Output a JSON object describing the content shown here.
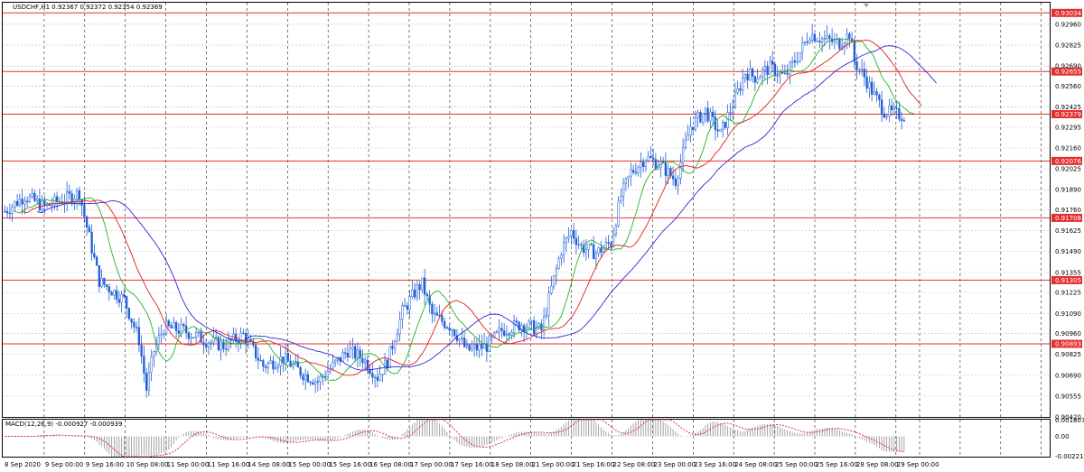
{
  "window": {
    "symbol_header": "USDCHF,H1  0.92367 0.92372 0.92354 0.92369",
    "macd_header": "MACD(12,26,9) -0.000927 -0.000939"
  },
  "colors": {
    "bull": "#1f5fd6",
    "bear": "#1f5fd6",
    "ma_fast": "#22b522",
    "ma_mid": "#e02020",
    "ma_slow": "#2a2ad8",
    "level_line": "#e53030",
    "level_tag_bg": "#e53030",
    "grid": "#b8b8b8",
    "vgrid": "#222222",
    "macd_hist": "#9a9a9a",
    "macd_signal": "#e02020"
  },
  "chart_data": [
    {
      "type": "candlestick",
      "title": "USDCHF,H1",
      "ohlc_last": {
        "open": 0.92367,
        "high": 0.92372,
        "low": 0.92354,
        "close": 0.92369
      },
      "ylim": [
        0.9042,
        0.931
      ],
      "y_ticks": [
        "0.92960",
        "0.92825",
        "0.92690",
        "0.92560",
        "0.92425",
        "0.92295",
        "0.92160",
        "0.92025",
        "0.91890",
        "0.91760",
        "0.91625",
        "0.91490",
        "0.91355",
        "0.91225",
        "0.91090",
        "0.90960",
        "0.90825",
        "0.90690",
        "0.90555",
        "0.90420"
      ],
      "x_ticks": [
        "8 Sep 2020",
        "9 Sep 00:00",
        "9 Sep 16:00",
        "10 Sep 08:00",
        "11 Sep 00:00",
        "11 Sep 16:00",
        "14 Sep 08:00",
        "15 Sep 00:00",
        "15 Sep 16:00",
        "16 Sep 08:00",
        "17 Sep 00:00",
        "17 Sep 16:00",
        "18 Sep 08:00",
        "21 Sep 00:00",
        "21 Sep 16:00",
        "22 Sep 08:00",
        "23 Sep 00:00",
        "23 Sep 16:00",
        "24 Sep 08:00",
        "25 Sep 00:00",
        "25 Sep 16:00",
        "28 Sep 08:00",
        "29 Sep 00:00"
      ],
      "levels": [
        "0.93034",
        "0.92655",
        "0.92379",
        "0.92076",
        "0.91708",
        "0.91305",
        "0.90893"
      ],
      "price_path": [
        {
          "t": 0,
          "p": 0.9175
        },
        {
          "t": 8,
          "p": 0.9185
        },
        {
          "t": 16,
          "p": 0.9178
        },
        {
          "t": 24,
          "p": 0.9183
        },
        {
          "t": 30,
          "p": 0.9187
        },
        {
          "t": 32,
          "p": 0.9172
        },
        {
          "t": 38,
          "p": 0.913
        },
        {
          "t": 48,
          "p": 0.9118
        },
        {
          "t": 54,
          "p": 0.9092
        },
        {
          "t": 57,
          "p": 0.906
        },
        {
          "t": 60,
          "p": 0.9085
        },
        {
          "t": 64,
          "p": 0.91
        },
        {
          "t": 72,
          "p": 0.9098
        },
        {
          "t": 80,
          "p": 0.9092
        },
        {
          "t": 88,
          "p": 0.9088
        },
        {
          "t": 96,
          "p": 0.9095
        },
        {
          "t": 104,
          "p": 0.9075
        },
        {
          "t": 112,
          "p": 0.908
        },
        {
          "t": 120,
          "p": 0.907
        },
        {
          "t": 126,
          "p": 0.9065
        },
        {
          "t": 132,
          "p": 0.9075
        },
        {
          "t": 138,
          "p": 0.9085
        },
        {
          "t": 144,
          "p": 0.908
        },
        {
          "t": 150,
          "p": 0.9068
        },
        {
          "t": 154,
          "p": 0.9078
        },
        {
          "t": 160,
          "p": 0.911
        },
        {
          "t": 166,
          "p": 0.9125
        },
        {
          "t": 168,
          "p": 0.9128
        },
        {
          "t": 172,
          "p": 0.9108
        },
        {
          "t": 180,
          "p": 0.91
        },
        {
          "t": 186,
          "p": 0.9085
        },
        {
          "t": 194,
          "p": 0.9088
        },
        {
          "t": 200,
          "p": 0.9098
        },
        {
          "t": 208,
          "p": 0.9102
        },
        {
          "t": 216,
          "p": 0.9098
        },
        {
          "t": 220,
          "p": 0.9125
        },
        {
          "t": 224,
          "p": 0.915
        },
        {
          "t": 228,
          "p": 0.9162
        },
        {
          "t": 232,
          "p": 0.9152
        },
        {
          "t": 238,
          "p": 0.9148
        },
        {
          "t": 244,
          "p": 0.9155
        },
        {
          "t": 248,
          "p": 0.9185
        },
        {
          "t": 252,
          "p": 0.92
        },
        {
          "t": 258,
          "p": 0.921
        },
        {
          "t": 264,
          "p": 0.9205
        },
        {
          "t": 270,
          "p": 0.9195
        },
        {
          "t": 276,
          "p": 0.923
        },
        {
          "t": 282,
          "p": 0.924
        },
        {
          "t": 288,
          "p": 0.9225
        },
        {
          "t": 294,
          "p": 0.9248
        },
        {
          "t": 298,
          "p": 0.9265
        },
        {
          "t": 302,
          "p": 0.9262
        },
        {
          "t": 308,
          "p": 0.9268
        },
        {
          "t": 314,
          "p": 0.9262
        },
        {
          "t": 320,
          "p": 0.9278
        },
        {
          "t": 324,
          "p": 0.929
        },
        {
          "t": 330,
          "p": 0.9286
        },
        {
          "t": 336,
          "p": 0.9284
        },
        {
          "t": 340,
          "p": 0.929
        },
        {
          "t": 342,
          "p": 0.9272
        },
        {
          "t": 346,
          "p": 0.9262
        },
        {
          "t": 350,
          "p": 0.925
        },
        {
          "t": 354,
          "p": 0.924
        },
        {
          "t": 358,
          "p": 0.9238
        },
        {
          "t": 362,
          "p": 0.9237
        }
      ]
    },
    {
      "type": "macd",
      "title": "MACD(12,26,9)",
      "main": -0.000927,
      "signal": -0.000939,
      "ylim": [
        -0.00225,
        0.00185
      ],
      "y_ticks": [
        "0.001807",
        "0.00",
        "-0.002219"
      ]
    }
  ]
}
